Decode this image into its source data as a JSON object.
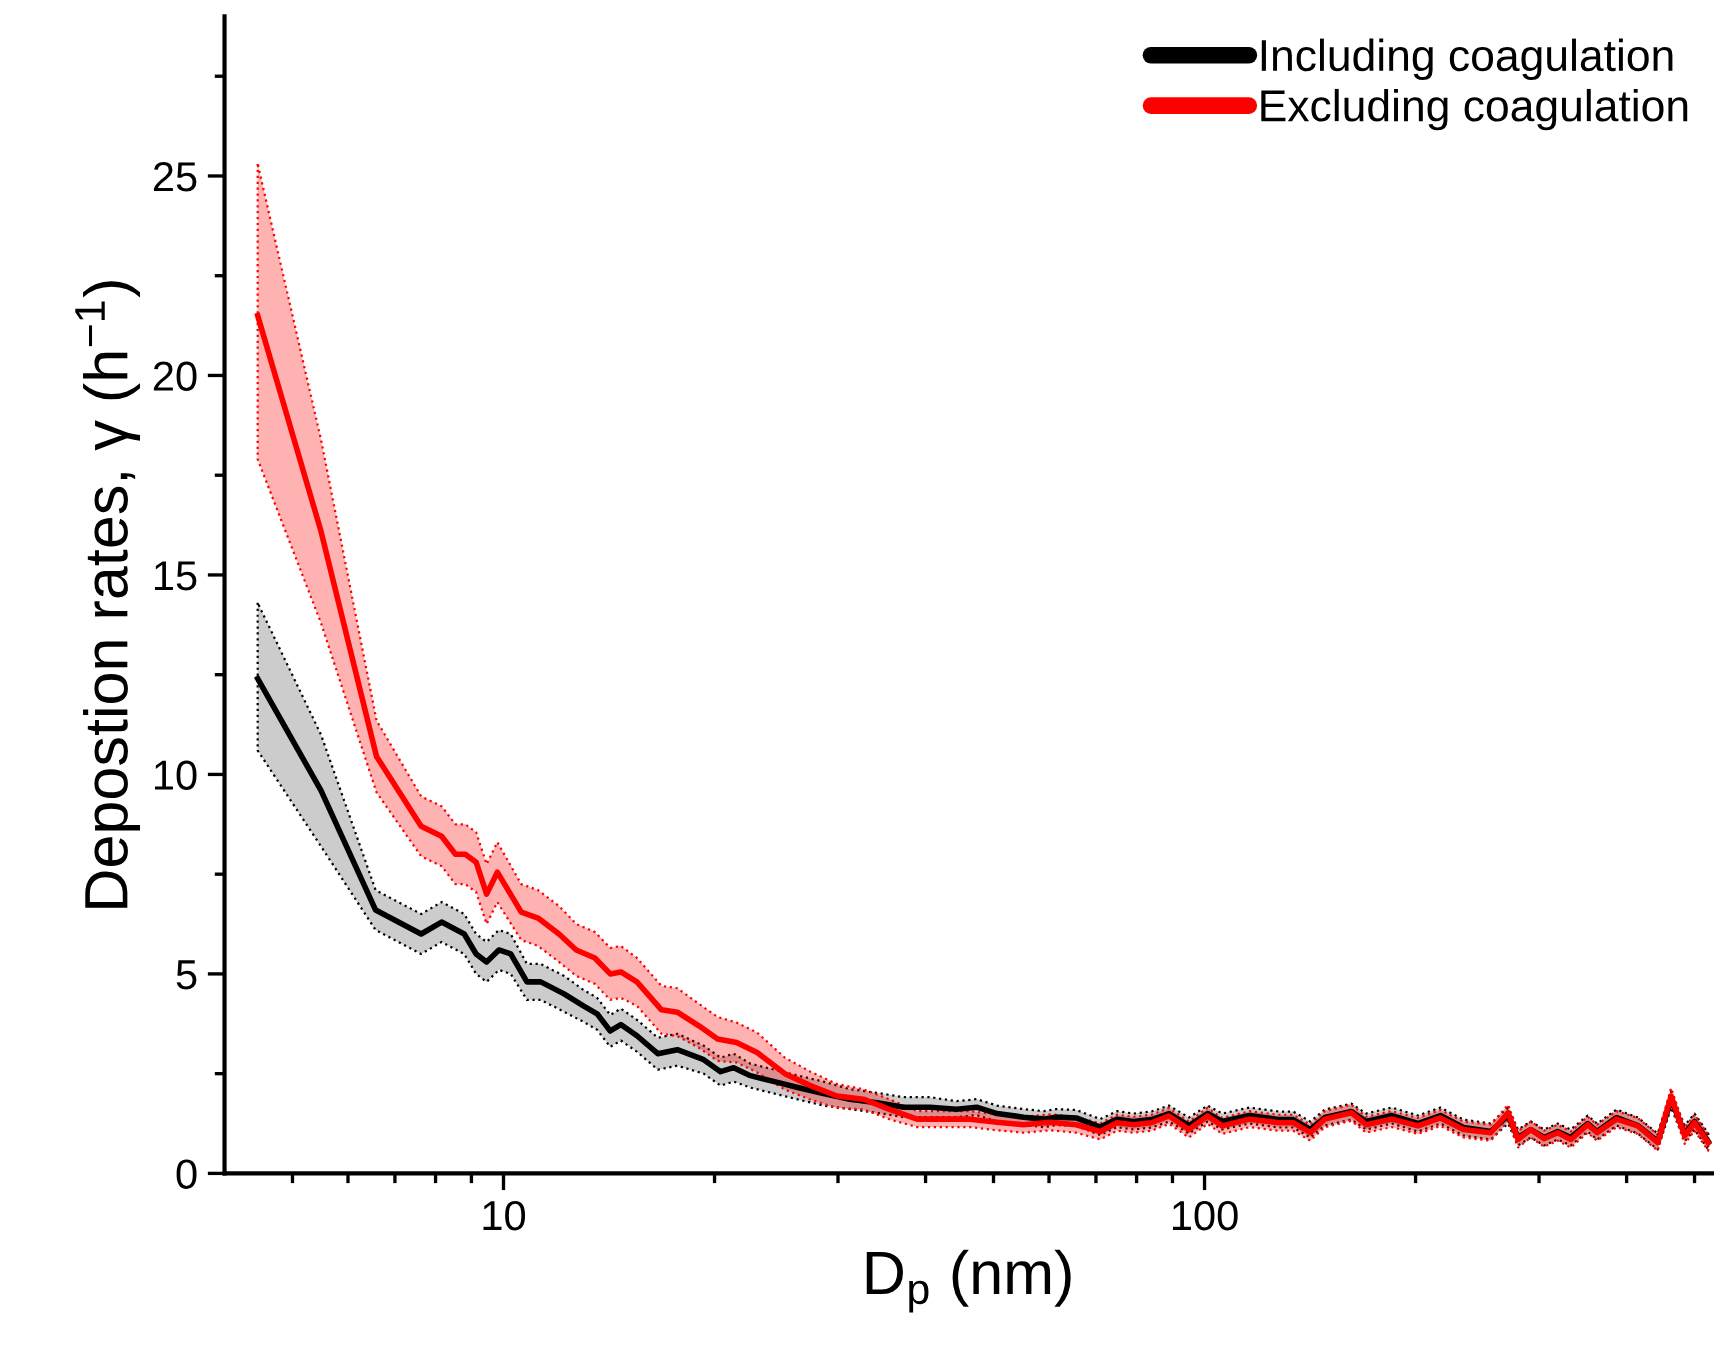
{
  "chart_data": {
    "type": "line",
    "xlabel": "D$_{p}$ (nm)",
    "ylabel": "Depostion rates, γ (h$^{−1}$)",
    "log": "x",
    "xlim": [
      4,
      530
    ],
    "ylim": [
      0,
      29
    ],
    "xticks": [
      {
        "value": 5,
        "label": null
      },
      {
        "value": 6,
        "label": null
      },
      {
        "value": 7,
        "label": null
      },
      {
        "value": 8,
        "label": null
      },
      {
        "value": 9,
        "label": null
      },
      10,
      {
        "value": 20,
        "label": null
      },
      {
        "value": 30,
        "label": null
      },
      {
        "value": 40,
        "label": null
      },
      {
        "value": 50,
        "label": null
      },
      {
        "value": 60,
        "label": null
      },
      {
        "value": 70,
        "label": null
      },
      {
        "value": 80,
        "label": null
      },
      {
        "value": 90,
        "label": null
      },
      100,
      {
        "value": 200,
        "label": null
      },
      {
        "value": 300,
        "label": null
      },
      {
        "value": 400,
        "label": null
      },
      {
        "value": 500,
        "label": null
      }
    ],
    "yticks": [
      0,
      {
        "value": 2.5,
        "label": null
      },
      5,
      {
        "value": 7.5,
        "label": null
      },
      10,
      {
        "value": 12.5,
        "label": null
      },
      15,
      {
        "value": 17.5,
        "label": null
      },
      20,
      {
        "value": 22.5,
        "label": null
      },
      25,
      {
        "value": 27.5,
        "label": null
      }
    ],
    "legend": "top right",
    "grid": false,
    "line_style": "solid",
    "marker": "none",
    "series": [
      {
        "name": "Including coagulation",
        "color": "#000000",
        "x": [
          4.46,
          5.49,
          6.57,
          7.63,
          8.16,
          8.79,
          9.14,
          9.46,
          9.85,
          10.24,
          10.8,
          11.3,
          12.2,
          13.0,
          13.6,
          14.2,
          14.7,
          15.5,
          16.6,
          17.7,
          19.3,
          20.4,
          21.3,
          22.5,
          24.6,
          26.2,
          28.6,
          31.2,
          34.1,
          37.2,
          40.6,
          44.3,
          47.3,
          50.6,
          55.2,
          59.0,
          61.4,
          65.6,
          71,
          75,
          79.2,
          84,
          89,
          95,
          101,
          106,
          116,
          127.5,
          133.8,
          141.5,
          148.5,
          162,
          170,
          185,
          201.6,
          217,
          234,
          256,
          271,
          280,
          292,
          305,
          319,
          333,
          352,
          363,
          387,
          415,
          443,
          463,
          484,
          500,
          523
        ],
        "values": [
          12.4,
          9.6,
          6.6,
          6.0,
          6.3,
          6.0,
          5.5,
          5.3,
          5.6,
          5.5,
          4.8,
          4.8,
          4.5,
          4.2,
          4.0,
          3.57,
          3.73,
          3.45,
          3.0,
          3.1,
          2.85,
          2.55,
          2.65,
          2.45,
          2.28,
          2.16,
          2.0,
          1.86,
          1.77,
          1.66,
          1.66,
          1.61,
          1.66,
          1.5,
          1.41,
          1.36,
          1.41,
          1.39,
          1.16,
          1.36,
          1.3,
          1.35,
          1.5,
          1.2,
          1.5,
          1.3,
          1.45,
          1.35,
          1.35,
          1.1,
          1.4,
          1.55,
          1.3,
          1.45,
          1.25,
          1.45,
          1.15,
          1.05,
          1.45,
          0.9,
          1.1,
          0.9,
          1.05,
          0.9,
          1.25,
          1.05,
          1.4,
          1.2,
          0.8,
          1.85,
          1.0,
          1.3,
          0.8
        ],
        "upper": [
          14.3,
          11.0,
          7.1,
          6.5,
          6.8,
          6.5,
          6.0,
          5.8,
          6.1,
          6.0,
          5.25,
          5.25,
          4.95,
          4.6,
          4.4,
          3.97,
          4.13,
          3.85,
          3.4,
          3.5,
          3.2,
          2.9,
          3.0,
          2.75,
          2.58,
          2.46,
          2.3,
          2.11,
          2.02,
          1.91,
          1.91,
          1.81,
          1.86,
          1.7,
          1.61,
          1.56,
          1.61,
          1.59,
          1.36,
          1.56,
          1.5,
          1.55,
          1.7,
          1.4,
          1.7,
          1.5,
          1.65,
          1.55,
          1.55,
          1.3,
          1.6,
          1.75,
          1.5,
          1.65,
          1.45,
          1.65,
          1.35,
          1.25,
          1.65,
          1.1,
          1.3,
          1.1,
          1.25,
          1.1,
          1.45,
          1.25,
          1.6,
          1.4,
          1.0,
          2.05,
          1.2,
          1.5,
          1.0
        ],
        "lower": [
          10.6,
          8.2,
          6.1,
          5.5,
          5.8,
          5.5,
          5.0,
          4.8,
          5.1,
          5.0,
          4.35,
          4.35,
          4.05,
          3.8,
          3.6,
          3.17,
          3.33,
          3.05,
          2.6,
          2.7,
          2.5,
          2.2,
          2.3,
          2.15,
          1.98,
          1.86,
          1.7,
          1.61,
          1.52,
          1.41,
          1.41,
          1.41,
          1.46,
          1.3,
          1.21,
          1.16,
          1.21,
          1.19,
          0.96,
          1.16,
          1.1,
          1.15,
          1.3,
          1.0,
          1.3,
          1.1,
          1.25,
          1.15,
          1.15,
          0.9,
          1.2,
          1.35,
          1.1,
          1.25,
          1.05,
          1.25,
          0.95,
          0.85,
          1.25,
          0.7,
          0.9,
          0.7,
          0.85,
          0.7,
          1.05,
          0.85,
          1.2,
          1.0,
          0.6,
          1.65,
          0.8,
          1.1,
          0.6
        ]
      },
      {
        "name": "Excluding coagulation",
        "color": "#ff0000",
        "x": [
          4.46,
          5.49,
          6.59,
          7.63,
          8.16,
          8.54,
          8.82,
          9.14,
          9.46,
          9.8,
          10.6,
          11.2,
          12.0,
          12.7,
          13.5,
          14.2,
          14.7,
          15.5,
          16.8,
          17.7,
          19.0,
          20.2,
          21.5,
          23.0,
          25.2,
          27.4,
          29.9,
          32.6,
          35.6,
          38.9,
          42.4,
          46.3,
          50.6,
          55.2,
          60.2,
          65.6,
          71,
          75,
          79.2,
          84,
          89,
          95,
          101,
          106,
          116,
          127.5,
          133.8,
          141.5,
          148.5,
          162,
          170,
          185,
          201.6,
          217,
          234,
          256,
          271,
          280,
          292,
          305,
          319,
          333,
          352,
          363,
          387,
          415,
          443,
          463,
          484,
          500,
          523
        ],
        "values": [
          21.5,
          16.1,
          10.45,
          8.7,
          8.45,
          8.0,
          8.0,
          7.8,
          7.0,
          7.55,
          6.55,
          6.4,
          6.0,
          5.6,
          5.4,
          5.0,
          5.05,
          4.8,
          4.1,
          4.04,
          3.7,
          3.37,
          3.28,
          3.03,
          2.5,
          2.2,
          1.94,
          1.86,
          1.6,
          1.36,
          1.36,
          1.36,
          1.28,
          1.22,
          1.28,
          1.22,
          1.05,
          1.27,
          1.22,
          1.27,
          1.44,
          1.1,
          1.44,
          1.19,
          1.36,
          1.27,
          1.27,
          1.02,
          1.36,
          1.52,
          1.22,
          1.36,
          1.19,
          1.39,
          1.1,
          1.02,
          1.52,
          0.85,
          1.1,
          0.87,
          1.02,
          0.85,
          1.22,
          1.02,
          1.36,
          1.19,
          0.77,
          1.94,
          0.94,
          1.27,
          0.77
        ],
        "upper": [
          25.3,
          18.4,
          11.35,
          9.45,
          9.2,
          8.75,
          8.75,
          8.55,
          7.75,
          8.3,
          7.25,
          7.1,
          6.7,
          6.25,
          6.05,
          5.65,
          5.7,
          5.4,
          4.7,
          4.64,
          4.25,
          3.92,
          3.78,
          3.53,
          2.9,
          2.55,
          2.24,
          2.11,
          1.85,
          1.56,
          1.56,
          1.56,
          1.48,
          1.42,
          1.48,
          1.42,
          1.25,
          1.47,
          1.42,
          1.47,
          1.64,
          1.3,
          1.64,
          1.39,
          1.56,
          1.47,
          1.47,
          1.22,
          1.56,
          1.72,
          1.42,
          1.56,
          1.39,
          1.59,
          1.3,
          1.22,
          1.72,
          1.05,
          1.3,
          1.07,
          1.22,
          1.05,
          1.42,
          1.22,
          1.56,
          1.39,
          0.97,
          2.14,
          1.14,
          1.47,
          0.97
        ],
        "lower": [
          17.9,
          13.8,
          9.55,
          7.95,
          7.7,
          7.25,
          7.25,
          7.05,
          6.25,
          6.8,
          5.85,
          5.7,
          5.3,
          4.95,
          4.75,
          4.35,
          4.4,
          4.2,
          3.5,
          3.44,
          3.15,
          2.82,
          2.78,
          2.53,
          2.1,
          1.85,
          1.64,
          1.61,
          1.35,
          1.16,
          1.16,
          1.16,
          1.08,
          1.02,
          1.08,
          1.02,
          0.85,
          1.07,
          1.02,
          1.07,
          1.24,
          0.9,
          1.24,
          0.99,
          1.16,
          1.07,
          1.07,
          0.82,
          1.16,
          1.32,
          1.02,
          1.16,
          0.99,
          1.19,
          0.9,
          0.82,
          1.32,
          0.65,
          0.9,
          0.67,
          0.82,
          0.65,
          1.02,
          0.82,
          1.16,
          0.99,
          0.57,
          1.74,
          0.74,
          1.07,
          0.57
        ]
      }
    ]
  }
}
